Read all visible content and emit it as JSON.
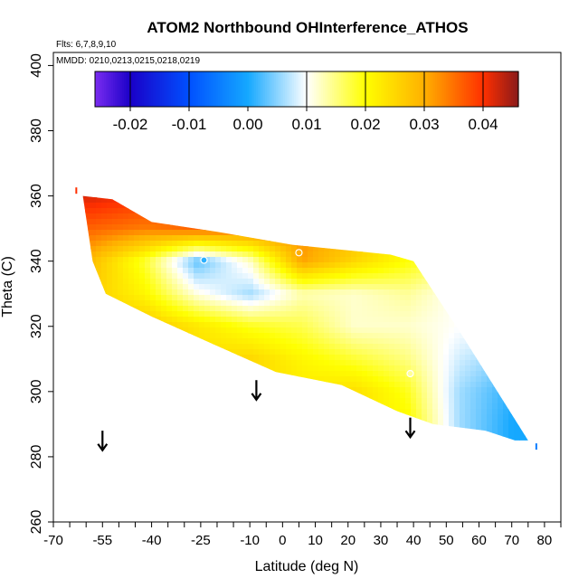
{
  "chart_data": {
    "type": "heatmap",
    "title": "ATOM2 Northbound OHInterference_ATHOS",
    "flights_label": "Flts: 6,7,8,9,10",
    "mmdd_label": "MMDD: 0210,0213,0215,0218,0219",
    "xlabel": "Latitude (deg N)",
    "ylabel": "Theta (C)",
    "xlim": [
      -70,
      85
    ],
    "ylim": [
      260,
      404
    ],
    "x_tick_labels": [
      "-70",
      "-55",
      "-40",
      "-25",
      "-10",
      "0",
      "10",
      "20",
      "30",
      "40",
      "50",
      "60",
      "70",
      "80"
    ],
    "y_tick_labels": [
      "260",
      "280",
      "300",
      "320",
      "340",
      "360",
      "380",
      "400"
    ],
    "colorbar": {
      "range": [
        -0.026,
        0.046
      ],
      "tick_labels": [
        "-0.02",
        "-0.01",
        "0.00",
        "0.01",
        "0.02",
        "0.03",
        "0.04"
      ],
      "tick_values": [
        -0.02,
        -0.01,
        0.0,
        0.01,
        0.02,
        0.03,
        0.04
      ],
      "colors": [
        "#7a2cf0",
        "#1a00c8",
        "#0050ff",
        "#15a8ff",
        "#ffffff",
        "#ffff00",
        "#ffb000",
        "#ff3000",
        "#8a1a1a"
      ],
      "color_stops": [
        -0.026,
        -0.02,
        -0.01,
        0.0,
        0.01,
        0.02,
        0.03,
        0.04,
        0.046
      ]
    },
    "field_grid": {
      "rows_theta": [
        360,
        350,
        340,
        330,
        320,
        310,
        300,
        290
      ],
      "cols_lat": [
        -58,
        -42,
        -26,
        -10,
        6,
        22,
        38,
        54,
        70
      ],
      "values": [
        [
          0.042,
          0.04,
          null,
          null,
          null,
          null,
          null,
          null,
          null
        ],
        [
          0.036,
          0.034,
          0.036,
          0.035,
          0.033,
          null,
          null,
          null,
          null
        ],
        [
          0.028,
          0.018,
          0.003,
          0.012,
          0.031,
          0.025,
          0.02,
          null,
          null
        ],
        [
          0.026,
          0.021,
          0.011,
          0.006,
          0.013,
          0.012,
          0.014,
          0.01,
          null
        ],
        [
          null,
          0.027,
          0.023,
          0.019,
          0.017,
          0.012,
          0.012,
          0.01,
          null
        ],
        [
          null,
          null,
          null,
          0.025,
          0.021,
          0.018,
          0.015,
          0.008,
          null
        ],
        [
          null,
          null,
          null,
          null,
          null,
          0.024,
          0.019,
          0.006,
          0.001
        ],
        [
          null,
          null,
          null,
          null,
          null,
          null,
          0.021,
          0.006,
          0.0
        ]
      ]
    },
    "polygon": [
      [
        -61,
        360
      ],
      [
        -52,
        359
      ],
      [
        -40,
        352
      ],
      [
        -20,
        349
      ],
      [
        3,
        345
      ],
      [
        33,
        342
      ],
      [
        40,
        340
      ],
      [
        55,
        317
      ],
      [
        75,
        285
      ],
      [
        71,
        285
      ],
      [
        62,
        288
      ],
      [
        46,
        290
      ],
      [
        35,
        294
      ],
      [
        18,
        302
      ],
      [
        -2,
        306
      ],
      [
        -20,
        314
      ],
      [
        -40,
        323
      ],
      [
        -54,
        330
      ],
      [
        -58,
        340
      ]
    ],
    "points": [
      {
        "lat": -24,
        "theta": 340.3,
        "value": 0.001
      },
      {
        "lat": 5,
        "theta": 342.6,
        "value": 0.03
      },
      {
        "lat": 39,
        "theta": 305.5,
        "value": 0.014
      }
    ],
    "edge_markers": [
      {
        "lat": -63,
        "theta": 361.5,
        "value": 0.04
      },
      {
        "lat": 77.5,
        "theta": 283.0,
        "value": -0.005
      }
    ],
    "arrows": [
      {
        "lat": -55,
        "theta_top": 288.0,
        "theta_bottom": 282.0
      },
      {
        "lat": -8,
        "theta_top": 303.5,
        "theta_bottom": 297.5
      },
      {
        "lat": 39,
        "theta_top": 292.0,
        "theta_bottom": 286.0
      }
    ]
  }
}
